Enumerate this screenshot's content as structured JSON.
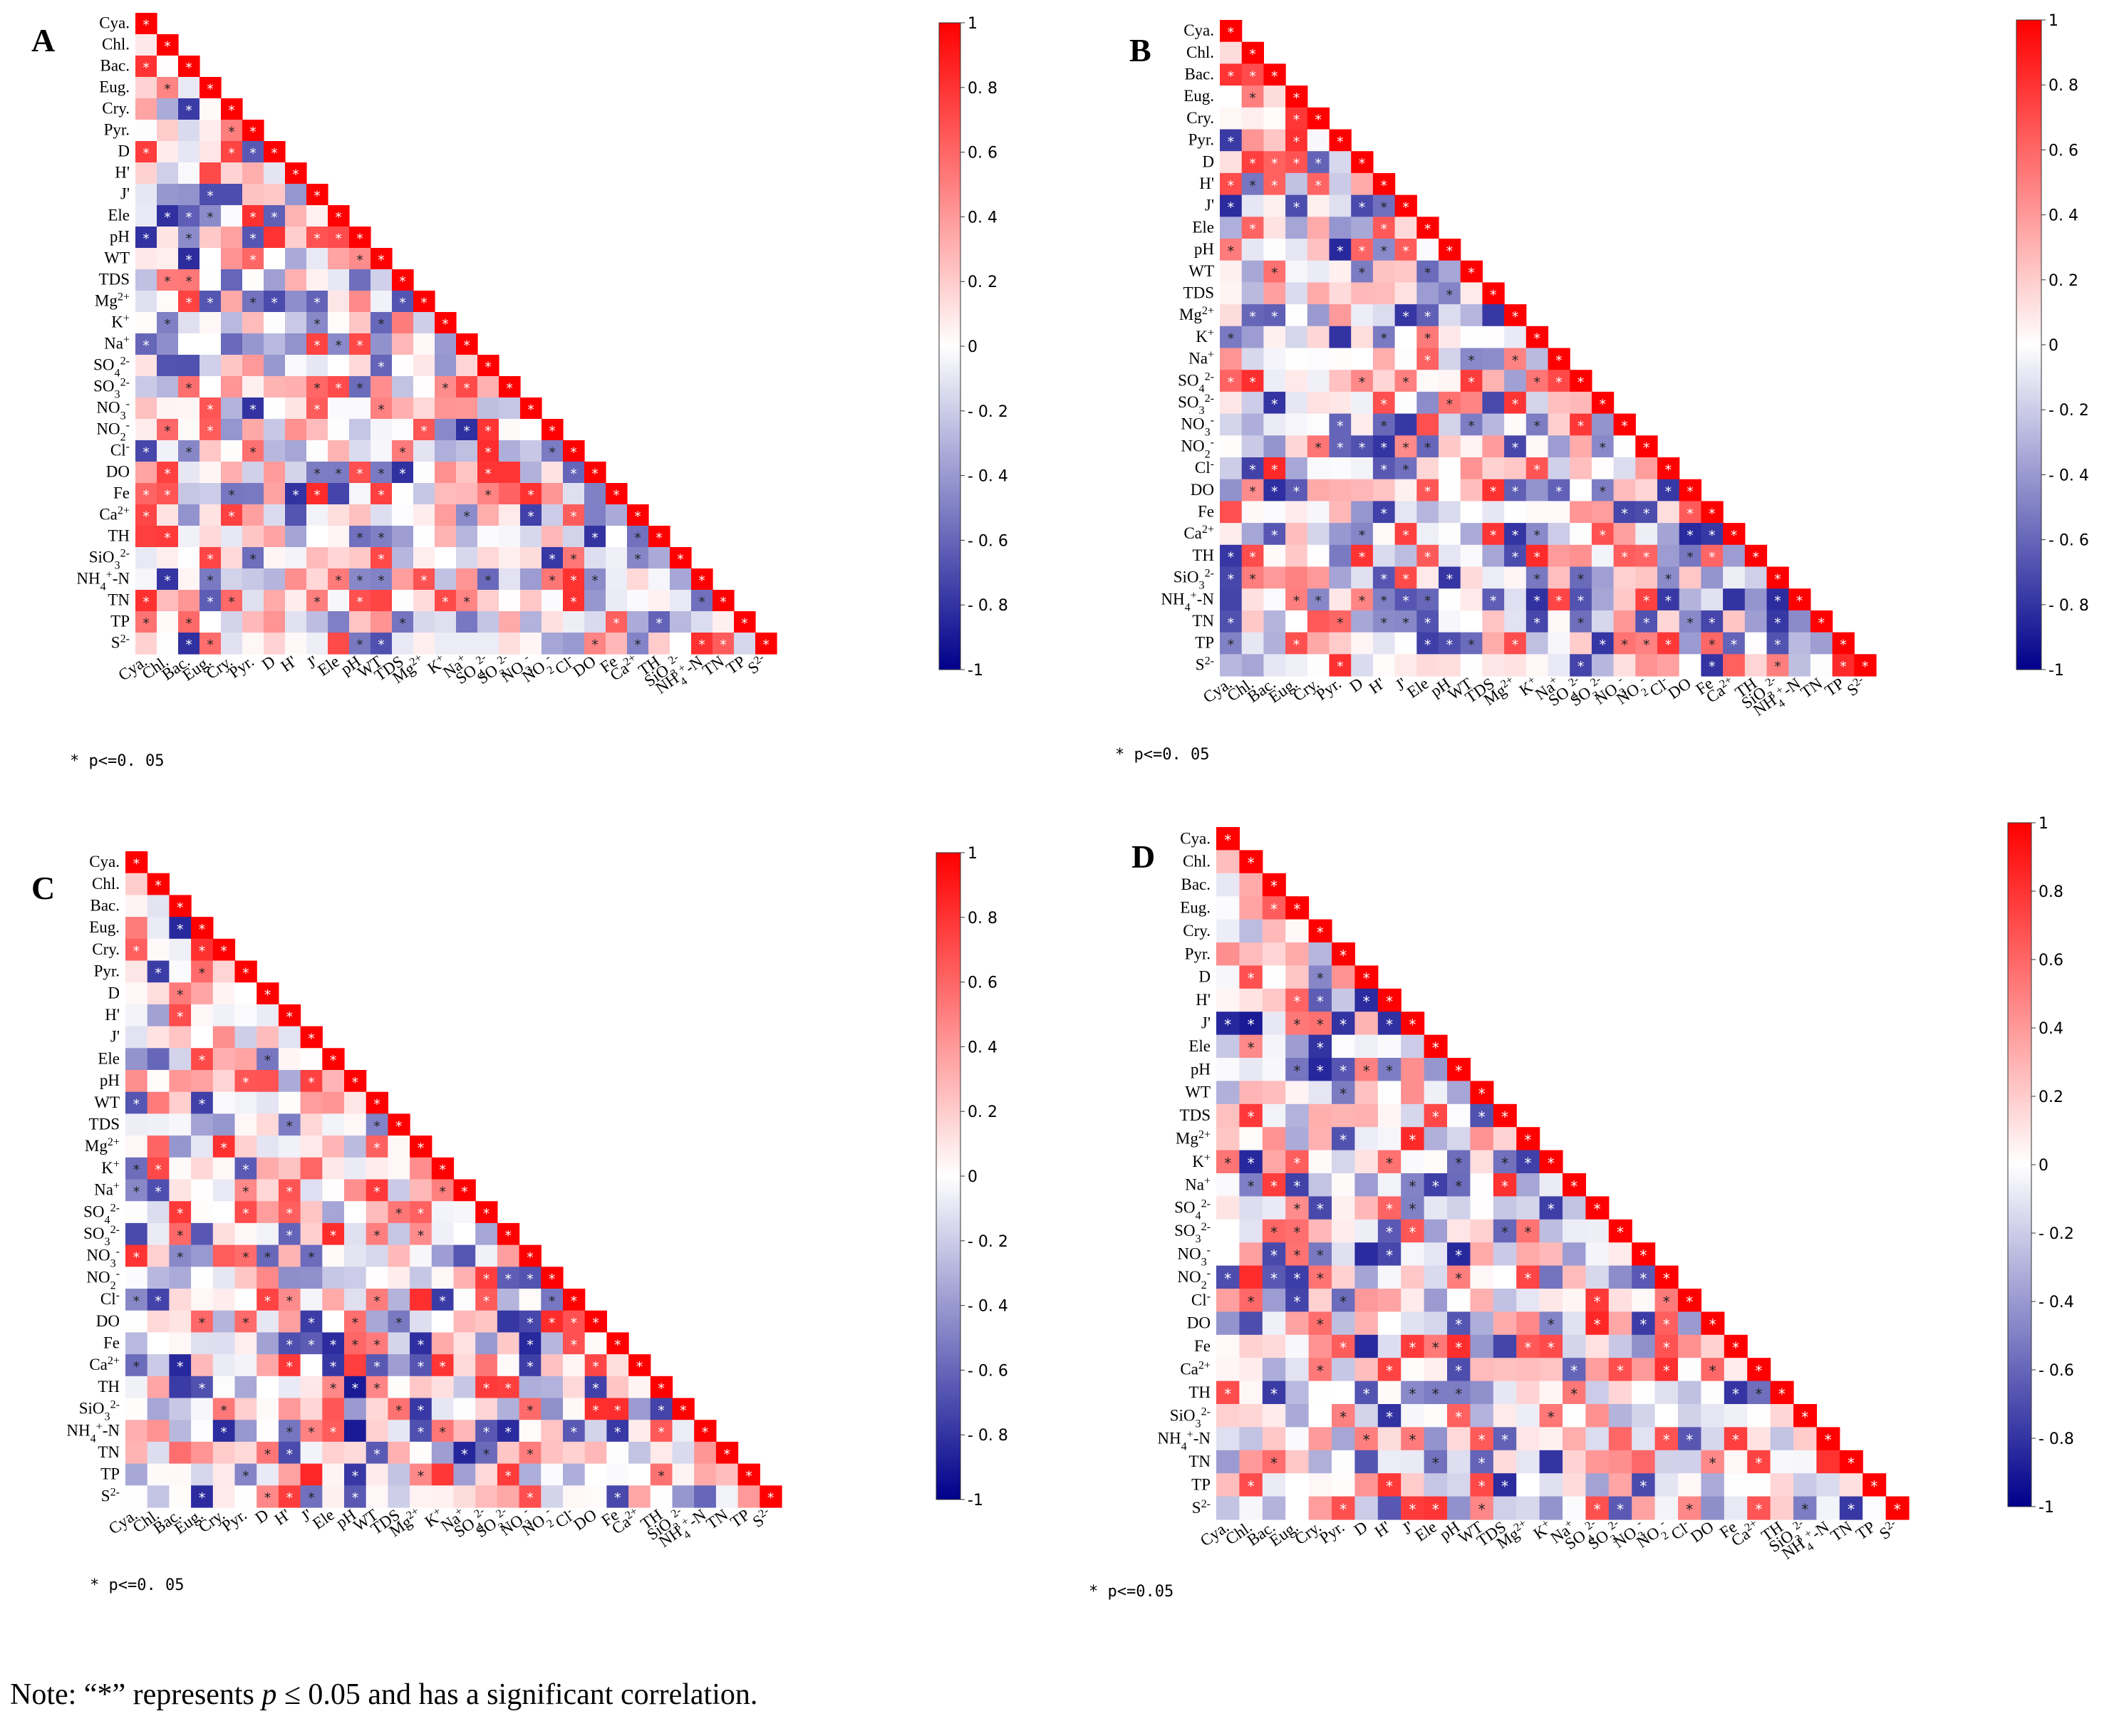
{
  "figure": {
    "note": {
      "prefix": "Note: “*” represents ",
      "p_symbol": "p",
      "suffix": " ≤ 0.05 and has a significant correlation."
    },
    "colorbar": {
      "tick_labels": [
        "1",
        "0. 8",
        "0. 6",
        "0. 4",
        "0. 2",
        "0",
        "- 0. 2",
        "- 0. 4",
        "- 0. 6",
        "- 0. 8",
        "-1"
      ],
      "tick_labels_D": [
        "1",
        "0.8",
        "0.6",
        "0.4",
        "0.2",
        "0",
        "- 0.2",
        "- 0.4",
        "- 0.6",
        "- 0.8",
        "-1"
      ],
      "min": -1,
      "max": 1
    },
    "colors": {
      "positive": "#ff0000",
      "zero": "#ffffff",
      "negative": "#00008b",
      "star_on_strong": "#ffffff",
      "star_on_weak": "#222222"
    }
  },
  "chart_data": [
    {
      "panel": "A",
      "type": "heatmap",
      "value_range": [
        -1,
        1
      ],
      "variables": [
        "Cya.",
        "Chl.",
        "Bac.",
        "Eug.",
        "Cry.",
        "Pyr.",
        "D",
        "H'",
        "J'",
        "Ele",
        "pH",
        "WT",
        "TDS",
        "Mg2+",
        "K+",
        "Na+",
        "SO42-",
        "SO32-",
        "NO3-",
        "NO2-",
        "Cl-",
        "DO",
        "Fe",
        "Ca2+",
        "TH",
        "SiO32-",
        "NH4+-N",
        "TN",
        "TP",
        "S2-"
      ],
      "variable_labels": [
        "Cya.",
        "Chl.",
        "Bac.",
        "Eug.",
        "Cry.",
        "Pyr.",
        "D",
        "H'",
        "J'",
        "Ele",
        "pH",
        "WT",
        "TDS",
        "Mg²⁺",
        "K⁺",
        "Na⁺",
        "SO₄²⁻",
        "SO₃²⁻",
        "NO₃⁻",
        "NO₂⁻",
        "Cl⁻",
        "DO",
        "Fe",
        "Ca²⁺",
        "TH",
        "SiO₃²⁻",
        "NH₄⁺-N",
        "TN",
        "TP",
        "S²⁻"
      ],
      "significance_label": "* p<=0. 05",
      "correlations_note": "lower-triangular correlation matrix; diagonal = 1 (significant)",
      "sample_values": {
        "Bac.-Cya.": 0.8,
        "J'-Eug.": -0.7,
        "J'-Cry.": -0.7,
        "TH-DO": -0.8,
        "K+-Chl.": -0.5
      }
    },
    {
      "panel": "B",
      "type": "heatmap",
      "value_range": [
        -1,
        1
      ],
      "variables": [
        "Cya.",
        "Chl.",
        "Bac.",
        "Eug.",
        "Cry.",
        "Pyr.",
        "D",
        "H'",
        "J'",
        "Ele",
        "pH",
        "WT",
        "TDS",
        "Mg2+",
        "K+",
        "Na+",
        "SO42-",
        "SO32-",
        "NO3-",
        "NO2-",
        "Cl-",
        "DO",
        "Fe",
        "Ca2+",
        "TH",
        "SiO32-",
        "NH4+-N",
        "TN",
        "TP",
        "S2-"
      ],
      "variable_labels": [
        "Cya.",
        "Chl.",
        "Bac.",
        "Eug.",
        "Cry.",
        "Pyr.",
        "D",
        "H'",
        "J'",
        "Ele",
        "pH",
        "WT",
        "TDS",
        "Mg²⁺",
        "K⁺",
        "Na⁺",
        "SO₄²⁻",
        "SO₃²⁻",
        "NO₃⁻",
        "NO₂⁻",
        "Cl⁻",
        "DO",
        "Fe",
        "Ca²⁺",
        "TH",
        "SiO₃²⁻",
        "NH₄⁺-N",
        "TN",
        "TP",
        "S²⁻"
      ],
      "significance_label": "* p<=0. 05",
      "correlations_note": "lower-triangular correlation matrix; diagonal = 1 (significant)",
      "sample_values": {
        "Bac.-Cya.": 0.8,
        "J'-Eug.": -0.7,
        "S2--Fe": -0.8,
        "TP-Fe": 0.6
      }
    },
    {
      "panel": "C",
      "type": "heatmap",
      "value_range": [
        -1,
        1
      ],
      "variables": [
        "Cya.",
        "Chl.",
        "Bac.",
        "Eug.",
        "Cry.",
        "Pyr.",
        "D",
        "H'",
        "J'",
        "Ele",
        "pH",
        "WT",
        "TDS",
        "Mg2+",
        "K+",
        "Na+",
        "SO42-",
        "SO32-",
        "NO3-",
        "NO2-",
        "Cl-",
        "DO",
        "Fe",
        "Ca2+",
        "TH",
        "SiO32-",
        "NH4+-N",
        "TN",
        "TP",
        "S2-"
      ],
      "variable_labels": [
        "Cya.",
        "Chl.",
        "Bac.",
        "Eug.",
        "Cry.",
        "Pyr.",
        "D",
        "H'",
        "J'",
        "Ele",
        "pH",
        "WT",
        "TDS",
        "Mg²⁺",
        "K⁺",
        "Na⁺",
        "SO₄²⁻",
        "SO₃²⁻",
        "NO₃⁻",
        "NO₂⁻",
        "Cl⁻",
        "DO",
        "Fe",
        "Ca²⁺",
        "TH",
        "SiO₃²⁻",
        "NH₄⁺-N",
        "TN",
        "TP",
        "S²⁻"
      ],
      "significance_label": "* p<=0. 05",
      "correlations_note": "lower-triangular correlation matrix; diagonal = 1 (significant)",
      "sample_values": {
        "NO3--Cya.": 0.8,
        "NH4+-N-pH": -0.9,
        "TH-pH": -0.9
      }
    },
    {
      "panel": "D",
      "type": "heatmap",
      "value_range": [
        -1,
        1
      ],
      "variables": [
        "Cya.",
        "Chl.",
        "Bac.",
        "Eug.",
        "Cry.",
        "Pyr.",
        "D",
        "H'",
        "J'",
        "Ele",
        "pH",
        "WT",
        "TDS",
        "Mg2+",
        "K+",
        "Na+",
        "SO42-",
        "SO32-",
        "NO3-",
        "NO2-",
        "Cl-",
        "DO",
        "Fe",
        "Ca2+",
        "TH",
        "SiO32-",
        "NH4+-N",
        "TN",
        "TP",
        "S2-"
      ],
      "variable_labels": [
        "Cya.",
        "Chl.",
        "Bac.",
        "Eug.",
        "Cry.",
        "Pyr.",
        "D",
        "H'",
        "J'",
        "Ele",
        "pH",
        "WT",
        "TDS",
        "Mg²⁺",
        "K⁺",
        "Na⁺",
        "SO₄²⁻",
        "SO₃²⁻",
        "NO₃⁻",
        "NO₂⁻",
        "Cl⁻",
        "DO",
        "Fe",
        "Ca²⁺",
        "TH",
        "SiO₃²⁻",
        "NH₄⁺-N",
        "TN",
        "TP",
        "S²⁻"
      ],
      "significance_label": "* p<=0.05",
      "correlations_note": "lower-triangular correlation matrix; diagonal = 1 (significant)",
      "sample_values": {
        "J'-Chl.": -0.9,
        "NO2--Cya.": -0.7,
        "TH-Cya.": 0.7
      }
    }
  ]
}
